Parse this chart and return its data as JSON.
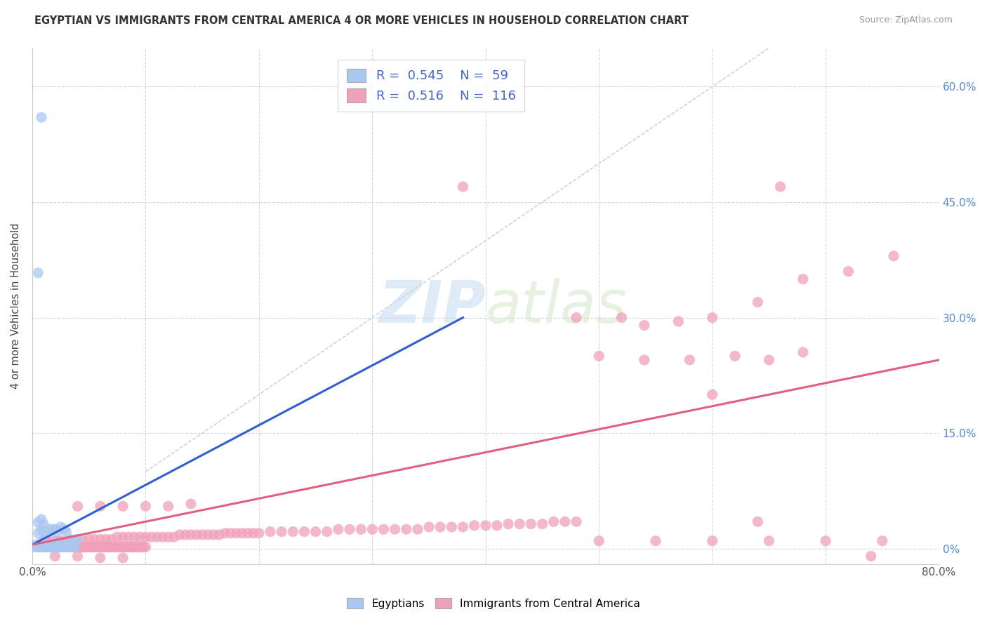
{
  "title": "EGYPTIAN VS IMMIGRANTS FROM CENTRAL AMERICA 4 OR MORE VEHICLES IN HOUSEHOLD CORRELATION CHART",
  "source": "Source: ZipAtlas.com",
  "ylabel": "4 or more Vehicles in Household",
  "ytick_vals": [
    0.0,
    0.15,
    0.3,
    0.45,
    0.6
  ],
  "ytick_labels": [
    "0%",
    "15.0%",
    "30.0%",
    "45.0%",
    "60.0%"
  ],
  "xlim": [
    0.0,
    0.8
  ],
  "ylim": [
    -0.02,
    0.65
  ],
  "legend_r1": "0.545",
  "legend_n1": "59",
  "legend_r2": "0.516",
  "legend_n2": "116",
  "watermark_zip": "ZIP",
  "watermark_atlas": "atlas",
  "blue_color": "#aac8f0",
  "pink_color": "#f0a0b8",
  "blue_line_color": "#3060d0",
  "pink_line_color": "#e06080",
  "blue_scatter": [
    [
      0.002,
      0.002
    ],
    [
      0.003,
      0.005
    ],
    [
      0.004,
      0.002
    ],
    [
      0.005,
      0.002
    ],
    [
      0.005,
      0.005
    ],
    [
      0.006,
      0.002
    ],
    [
      0.007,
      0.002
    ],
    [
      0.008,
      0.005
    ],
    [
      0.008,
      0.008
    ],
    [
      0.009,
      0.002
    ],
    [
      0.01,
      0.002
    ],
    [
      0.01,
      0.005
    ],
    [
      0.011,
      0.002
    ],
    [
      0.012,
      0.002
    ],
    [
      0.012,
      0.005
    ],
    [
      0.013,
      0.002
    ],
    [
      0.014,
      0.002
    ],
    [
      0.015,
      0.002
    ],
    [
      0.015,
      0.005
    ],
    [
      0.016,
      0.005
    ],
    [
      0.017,
      0.002
    ],
    [
      0.018,
      0.002
    ],
    [
      0.019,
      0.005
    ],
    [
      0.02,
      0.002
    ],
    [
      0.02,
      0.008
    ],
    [
      0.021,
      0.002
    ],
    [
      0.022,
      0.002
    ],
    [
      0.023,
      0.005
    ],
    [
      0.024,
      0.002
    ],
    [
      0.025,
      0.002
    ],
    [
      0.026,
      0.002
    ],
    [
      0.027,
      0.002
    ],
    [
      0.028,
      0.002
    ],
    [
      0.03,
      0.005
    ],
    [
      0.032,
      0.002
    ],
    [
      0.034,
      0.012
    ],
    [
      0.036,
      0.002
    ],
    [
      0.038,
      0.002
    ],
    [
      0.04,
      0.012
    ],
    [
      0.005,
      0.02
    ],
    [
      0.008,
      0.025
    ],
    [
      0.01,
      0.022
    ],
    [
      0.012,
      0.02
    ],
    [
      0.015,
      0.025
    ],
    [
      0.018,
      0.025
    ],
    [
      0.02,
      0.025
    ],
    [
      0.022,
      0.022
    ],
    [
      0.025,
      0.028
    ],
    [
      0.028,
      0.025
    ],
    [
      0.03,
      0.022
    ],
    [
      0.005,
      0.034
    ],
    [
      0.008,
      0.038
    ],
    [
      0.01,
      0.032
    ],
    [
      0.005,
      0.358
    ],
    [
      0.008,
      0.56
    ]
  ],
  "pink_scatter": [
    [
      0.005,
      0.002
    ],
    [
      0.008,
      0.002
    ],
    [
      0.01,
      0.002
    ],
    [
      0.012,
      0.002
    ],
    [
      0.014,
      0.002
    ],
    [
      0.016,
      0.002
    ],
    [
      0.018,
      0.002
    ],
    [
      0.02,
      0.002
    ],
    [
      0.022,
      0.002
    ],
    [
      0.024,
      0.002
    ],
    [
      0.026,
      0.002
    ],
    [
      0.028,
      0.002
    ],
    [
      0.03,
      0.002
    ],
    [
      0.032,
      0.002
    ],
    [
      0.034,
      0.002
    ],
    [
      0.036,
      0.002
    ],
    [
      0.038,
      0.002
    ],
    [
      0.04,
      0.002
    ],
    [
      0.042,
      0.002
    ],
    [
      0.044,
      0.002
    ],
    [
      0.046,
      0.002
    ],
    [
      0.048,
      0.002
    ],
    [
      0.05,
      0.002
    ],
    [
      0.052,
      0.002
    ],
    [
      0.054,
      0.002
    ],
    [
      0.056,
      0.002
    ],
    [
      0.058,
      0.002
    ],
    [
      0.06,
      0.002
    ],
    [
      0.062,
      0.002
    ],
    [
      0.064,
      0.002
    ],
    [
      0.066,
      0.002
    ],
    [
      0.068,
      0.002
    ],
    [
      0.07,
      0.002
    ],
    [
      0.072,
      0.002
    ],
    [
      0.074,
      0.002
    ],
    [
      0.076,
      0.002
    ],
    [
      0.078,
      0.002
    ],
    [
      0.08,
      0.002
    ],
    [
      0.082,
      0.002
    ],
    [
      0.084,
      0.002
    ],
    [
      0.086,
      0.002
    ],
    [
      0.088,
      0.002
    ],
    [
      0.09,
      0.002
    ],
    [
      0.092,
      0.002
    ],
    [
      0.094,
      0.002
    ],
    [
      0.096,
      0.002
    ],
    [
      0.098,
      0.002
    ],
    [
      0.1,
      0.002
    ],
    [
      0.01,
      0.01
    ],
    [
      0.015,
      0.008
    ],
    [
      0.018,
      0.01
    ],
    [
      0.022,
      0.01
    ],
    [
      0.025,
      0.01
    ],
    [
      0.03,
      0.01
    ],
    [
      0.035,
      0.01
    ],
    [
      0.038,
      0.01
    ],
    [
      0.04,
      0.012
    ],
    [
      0.045,
      0.01
    ],
    [
      0.05,
      0.012
    ],
    [
      0.055,
      0.012
    ],
    [
      0.06,
      0.012
    ],
    [
      0.065,
      0.012
    ],
    [
      0.07,
      0.012
    ],
    [
      0.075,
      0.015
    ],
    [
      0.08,
      0.015
    ],
    [
      0.085,
      0.015
    ],
    [
      0.09,
      0.015
    ],
    [
      0.095,
      0.015
    ],
    [
      0.1,
      0.015
    ],
    [
      0.105,
      0.015
    ],
    [
      0.11,
      0.015
    ],
    [
      0.115,
      0.015
    ],
    [
      0.12,
      0.015
    ],
    [
      0.125,
      0.015
    ],
    [
      0.13,
      0.018
    ],
    [
      0.135,
      0.018
    ],
    [
      0.14,
      0.018
    ],
    [
      0.145,
      0.018
    ],
    [
      0.15,
      0.018
    ],
    [
      0.155,
      0.018
    ],
    [
      0.16,
      0.018
    ],
    [
      0.165,
      0.018
    ],
    [
      0.17,
      0.02
    ],
    [
      0.175,
      0.02
    ],
    [
      0.18,
      0.02
    ],
    [
      0.185,
      0.02
    ],
    [
      0.19,
      0.02
    ],
    [
      0.195,
      0.02
    ],
    [
      0.2,
      0.02
    ],
    [
      0.21,
      0.022
    ],
    [
      0.22,
      0.022
    ],
    [
      0.23,
      0.022
    ],
    [
      0.24,
      0.022
    ],
    [
      0.25,
      0.022
    ],
    [
      0.26,
      0.022
    ],
    [
      0.27,
      0.025
    ],
    [
      0.28,
      0.025
    ],
    [
      0.29,
      0.025
    ],
    [
      0.3,
      0.025
    ],
    [
      0.31,
      0.025
    ],
    [
      0.32,
      0.025
    ],
    [
      0.33,
      0.025
    ],
    [
      0.34,
      0.025
    ],
    [
      0.35,
      0.028
    ],
    [
      0.36,
      0.028
    ],
    [
      0.37,
      0.028
    ],
    [
      0.38,
      0.028
    ],
    [
      0.39,
      0.03
    ],
    [
      0.4,
      0.03
    ],
    [
      0.41,
      0.03
    ],
    [
      0.42,
      0.032
    ],
    [
      0.43,
      0.032
    ],
    [
      0.44,
      0.032
    ],
    [
      0.45,
      0.032
    ],
    [
      0.46,
      0.035
    ],
    [
      0.47,
      0.035
    ],
    [
      0.48,
      0.035
    ],
    [
      0.04,
      0.055
    ],
    [
      0.06,
      0.055
    ],
    [
      0.08,
      0.055
    ],
    [
      0.1,
      0.055
    ],
    [
      0.12,
      0.055
    ],
    [
      0.14,
      0.058
    ],
    [
      0.02,
      -0.01
    ],
    [
      0.04,
      -0.01
    ],
    [
      0.06,
      -0.012
    ],
    [
      0.08,
      -0.012
    ],
    [
      0.38,
      0.47
    ],
    [
      0.66,
      0.47
    ],
    [
      0.48,
      0.3
    ],
    [
      0.52,
      0.3
    ],
    [
      0.54,
      0.29
    ],
    [
      0.57,
      0.295
    ],
    [
      0.6,
      0.3
    ],
    [
      0.64,
      0.32
    ],
    [
      0.5,
      0.25
    ],
    [
      0.54,
      0.245
    ],
    [
      0.58,
      0.245
    ],
    [
      0.62,
      0.25
    ],
    [
      0.65,
      0.245
    ],
    [
      0.68,
      0.255
    ],
    [
      0.68,
      0.35
    ],
    [
      0.72,
      0.36
    ],
    [
      0.76,
      0.38
    ],
    [
      0.6,
      0.2
    ],
    [
      0.64,
      0.035
    ],
    [
      0.5,
      0.01
    ],
    [
      0.55,
      0.01
    ],
    [
      0.6,
      0.01
    ],
    [
      0.65,
      0.01
    ],
    [
      0.7,
      0.01
    ],
    [
      0.75,
      0.01
    ],
    [
      0.74,
      -0.01
    ]
  ],
  "blue_line_x": [
    0.0,
    0.38
  ],
  "blue_line_y": [
    0.005,
    0.3
  ],
  "pink_line_x": [
    0.0,
    0.8
  ],
  "pink_line_y": [
    0.005,
    0.245
  ],
  "diag_line_x": [
    0.1,
    0.65
  ],
  "diag_line_y": [
    0.1,
    0.65
  ]
}
